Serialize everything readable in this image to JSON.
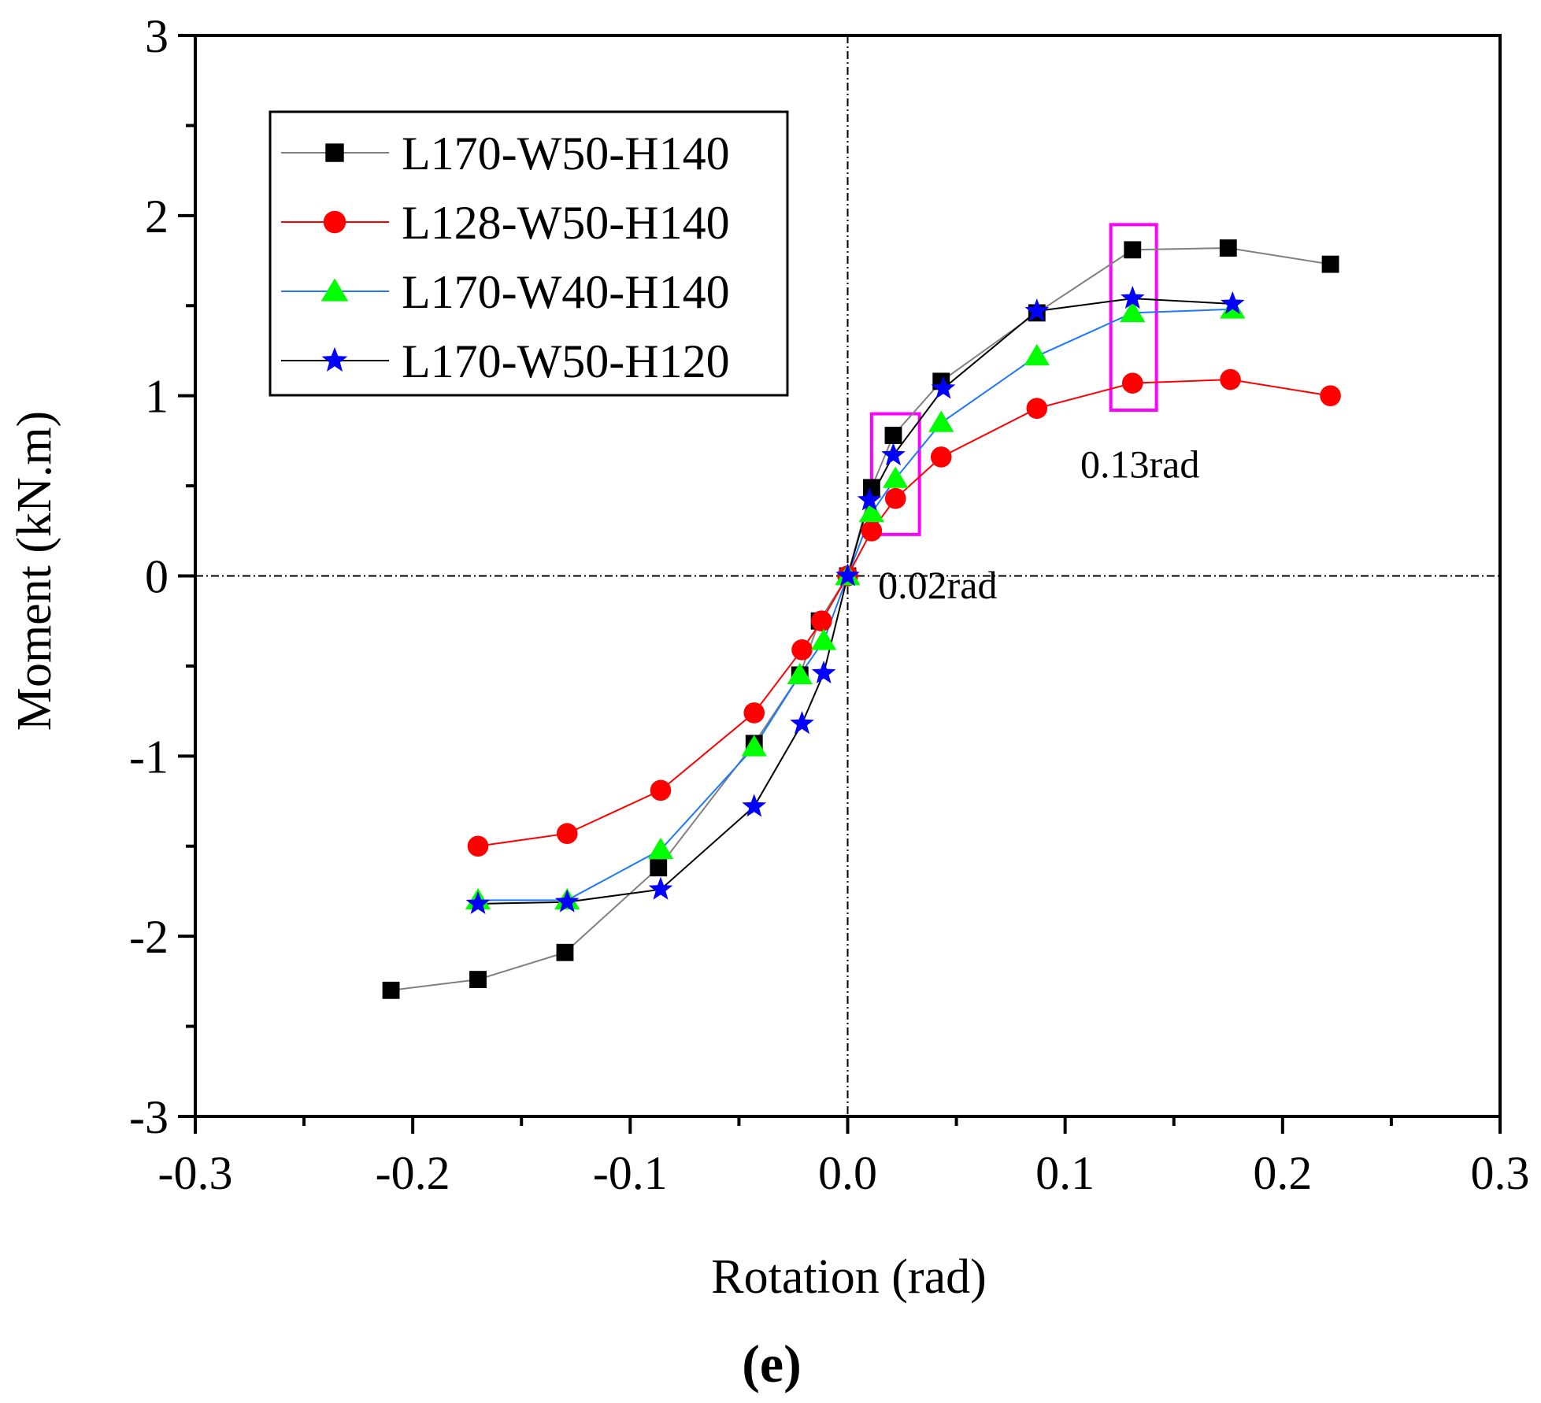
{
  "chart_data": {
    "type": "line",
    "title": "",
    "xlabel": "Rotation (rad)",
    "ylabel": "Moment (kN.m)",
    "xlim": [
      -0.3,
      0.3
    ],
    "ylim": [
      -3,
      3
    ],
    "xticks": [
      -0.3,
      -0.2,
      -0.1,
      0.0,
      0.1,
      0.2,
      0.3
    ],
    "xtick_labels": [
      "-0.3",
      "-0.2",
      "-0.1",
      "0.0",
      "0.1",
      "0.2",
      "0.3"
    ],
    "yticks": [
      -3,
      -2,
      -1,
      0,
      1,
      2,
      3
    ],
    "ytick_labels": [
      "-3",
      "-2",
      "-1",
      "0",
      "1",
      "2",
      "3"
    ],
    "panel_label": "(e)",
    "legend_position": "top-left",
    "series": [
      {
        "name": "L170-W50-H140",
        "color": "#000000",
        "line_color": "#808080",
        "marker": "square",
        "x": [
          -0.21,
          -0.17,
          -0.13,
          -0.087,
          -0.043,
          -0.022,
          -0.013,
          0.0,
          0.011,
          0.021,
          0.043,
          0.087,
          0.131,
          0.175,
          0.222
        ],
        "y": [
          -2.3,
          -2.24,
          -2.09,
          -1.62,
          -0.93,
          -0.55,
          -0.25,
          0.0,
          0.49,
          0.78,
          1.08,
          1.46,
          1.81,
          1.82,
          1.73
        ]
      },
      {
        "name": "L128-W50-H140",
        "color": "#ff0000",
        "line_color": "#ff0000",
        "marker": "circle",
        "x": [
          -0.17,
          -0.129,
          -0.086,
          -0.043,
          -0.021,
          -0.012,
          0.0,
          0.011,
          0.022,
          0.043,
          0.087,
          0.131,
          0.176,
          0.222
        ],
        "y": [
          -1.5,
          -1.43,
          -1.19,
          -0.76,
          -0.41,
          -0.25,
          0.0,
          0.25,
          0.43,
          0.66,
          0.93,
          1.07,
          1.09,
          1.0
        ]
      },
      {
        "name": "L170-W40-H140",
        "color": "#00ff00",
        "line_color": "#1e78ff",
        "marker": "triangle",
        "x": [
          -0.17,
          -0.129,
          -0.086,
          -0.043,
          -0.022,
          -0.011,
          0.0,
          0.011,
          0.022,
          0.043,
          0.087,
          0.131,
          0.177
        ],
        "y": [
          -1.8,
          -1.8,
          -1.52,
          -0.95,
          -0.55,
          -0.36,
          0.0,
          0.35,
          0.54,
          0.85,
          1.22,
          1.46,
          1.48
        ]
      },
      {
        "name": "L170-W50-H120",
        "color": "#0000ff",
        "line_color": "#000000",
        "marker": "star",
        "x": [
          -0.17,
          -0.129,
          -0.086,
          -0.043,
          -0.021,
          -0.011,
          0.0,
          0.01,
          0.021,
          0.044,
          0.087,
          0.131,
          0.177
        ],
        "y": [
          -1.82,
          -1.81,
          -1.74,
          -1.28,
          -0.82,
          -0.54,
          0.0,
          0.42,
          0.67,
          1.04,
          1.47,
          1.54,
          1.51
        ]
      }
    ],
    "annotations": [
      {
        "text": "0.02rad",
        "x": 0.014,
        "y": -0.05,
        "box_x": [
          0.011,
          0.033
        ],
        "box_y": [
          0.23,
          0.9
        ],
        "box_color": "#ff00ff"
      },
      {
        "text": "0.13rad",
        "x": 0.107,
        "y": 0.62,
        "box_x": [
          0.121,
          0.142
        ],
        "box_y": [
          0.92,
          1.95
        ],
        "box_color": "#ff00ff"
      }
    ]
  }
}
